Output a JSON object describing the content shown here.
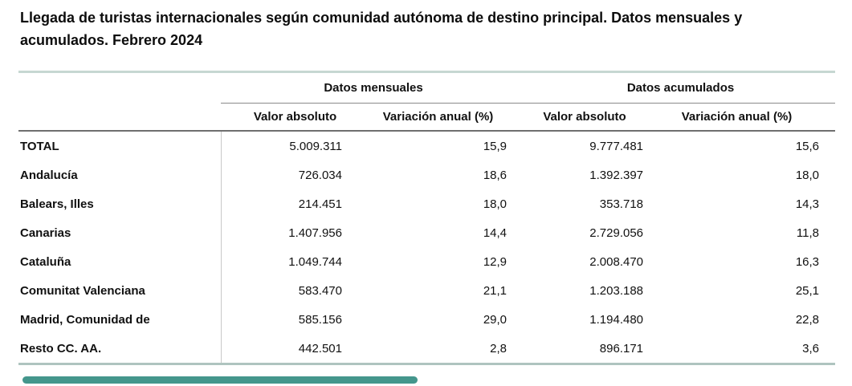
{
  "title": "Llegada de turistas internacionales según comunidad autónoma de destino principal. Datos mensuales y acumulados. Febrero 2024",
  "colors": {
    "table_border_top": "#c6d7d2",
    "table_border_bottom": "#afc4bf",
    "header_rule": "#6f6f6f",
    "group_rule": "#8a8a8a",
    "column_separator": "#c9c9c9",
    "scrollbar_thumb": "#44968c",
    "text": "#111111"
  },
  "chart_data": {
    "type": "table",
    "title": "Llegada de turistas internacionales según comunidad autónoma de destino principal. Datos mensuales y acumulados. Febrero 2024",
    "column_groups": [
      "Datos mensuales",
      "Datos acumulados"
    ],
    "columns": [
      "Valor absoluto",
      "Variación anual (%)",
      "Valor absoluto",
      "Variación anual (%)"
    ],
    "rows": [
      {
        "label": "TOTAL",
        "monthly_value": "5.009.311",
        "monthly_variation": "15,9",
        "cumulative_value": "9.777.481",
        "cumulative_variation": "15,6"
      },
      {
        "label": "Andalucía",
        "monthly_value": "726.034",
        "monthly_variation": "18,6",
        "cumulative_value": "1.392.397",
        "cumulative_variation": "18,0"
      },
      {
        "label": "Balears, Illes",
        "monthly_value": "214.451",
        "monthly_variation": "18,0",
        "cumulative_value": "353.718",
        "cumulative_variation": "14,3"
      },
      {
        "label": "Canarias",
        "monthly_value": "1.407.956",
        "monthly_variation": "14,4",
        "cumulative_value": "2.729.056",
        "cumulative_variation": "11,8"
      },
      {
        "label": "Cataluña",
        "monthly_value": "1.049.744",
        "monthly_variation": "12,9",
        "cumulative_value": "2.008.470",
        "cumulative_variation": "16,3"
      },
      {
        "label": "Comunitat Valenciana",
        "monthly_value": "583.470",
        "monthly_variation": "21,1",
        "cumulative_value": "1.203.188",
        "cumulative_variation": "25,1"
      },
      {
        "label": "Madrid, Comunidad de",
        "monthly_value": "585.156",
        "monthly_variation": "29,0",
        "cumulative_value": "1.194.480",
        "cumulative_variation": "22,8"
      },
      {
        "label": "Resto CC. AA.",
        "monthly_value": "442.501",
        "monthly_variation": "2,8",
        "cumulative_value": "896.171",
        "cumulative_variation": "3,6"
      }
    ]
  }
}
